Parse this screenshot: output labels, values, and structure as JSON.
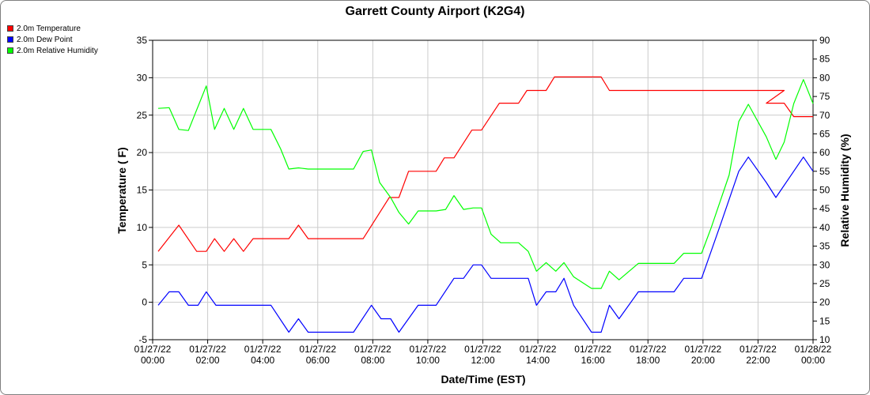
{
  "chart_data": {
    "type": "line",
    "title": "Garrett County Airport (K2G4)",
    "xlabel": "Date/Time (EST)",
    "ylabel": "Temperature ( F)",
    "y2label": "Relative Humidity (%)",
    "ylim": [
      -5,
      35
    ],
    "y2lim": [
      10,
      90
    ],
    "yticks": [
      -5,
      0,
      5,
      10,
      15,
      20,
      25,
      30,
      35
    ],
    "y2ticks": [
      10,
      15,
      20,
      25,
      30,
      35,
      40,
      45,
      50,
      55,
      60,
      65,
      70,
      75,
      80,
      85,
      90
    ],
    "xlim_hours": [
      0,
      24
    ],
    "xticks": [
      {
        "h": 0,
        "date": "01/27/22",
        "time": "00:00"
      },
      {
        "h": 2,
        "date": "01/27/22",
        "time": "02:00"
      },
      {
        "h": 4,
        "date": "01/27/22",
        "time": "04:00"
      },
      {
        "h": 6,
        "date": "01/27/22",
        "time": "06:00"
      },
      {
        "h": 8,
        "date": "01/27/22",
        "time": "08:00"
      },
      {
        "h": 10,
        "date": "01/27/22",
        "time": "10:00"
      },
      {
        "h": 12,
        "date": "01/27/22",
        "time": "12:00"
      },
      {
        "h": 14,
        "date": "01/27/22",
        "time": "14:00"
      },
      {
        "h": 16,
        "date": "01/27/22",
        "time": "16:00"
      },
      {
        "h": 18,
        "date": "01/27/22",
        "time": "18:00"
      },
      {
        "h": 20,
        "date": "01/27/22",
        "time": "20:00"
      },
      {
        "h": 22,
        "date": "01/27/22",
        "time": "22:00"
      },
      {
        "h": 24,
        "date": "01/28/22",
        "time": "00:00"
      }
    ],
    "legend_position": "top-left",
    "grid": true,
    "series": [
      {
        "name": "2.0m Temperature",
        "color": "#ff0000",
        "axis": "left",
        "points": [
          [
            0.2,
            6.8
          ],
          [
            0.95,
            10.3
          ],
          [
            1.6,
            6.8
          ],
          [
            1.95,
            6.8
          ],
          [
            2.25,
            8.5
          ],
          [
            2.6,
            6.8
          ],
          [
            2.95,
            8.5
          ],
          [
            3.3,
            6.8
          ],
          [
            3.65,
            8.5
          ],
          [
            4.95,
            8.5
          ],
          [
            5.3,
            10.3
          ],
          [
            5.65,
            8.5
          ],
          [
            7.65,
            8.5
          ],
          [
            8.6,
            14
          ],
          [
            8.95,
            14
          ],
          [
            9.3,
            17.5
          ],
          [
            10.3,
            17.5
          ],
          [
            10.6,
            19.3
          ],
          [
            10.95,
            19.3
          ],
          [
            11.6,
            23
          ],
          [
            11.95,
            23
          ],
          [
            12.6,
            26.6
          ],
          [
            13.3,
            26.6
          ],
          [
            13.6,
            28.3
          ],
          [
            14.3,
            28.3
          ],
          [
            14.6,
            30.1
          ],
          [
            16.3,
            30.1
          ],
          [
            16.6,
            28.3
          ],
          [
            22.95,
            28.3
          ],
          [
            22.3,
            26.6
          ],
          [
            22.95,
            26.6
          ],
          [
            23.3,
            24.8
          ],
          [
            24,
            24.8
          ]
        ]
      },
      {
        "name": "2.0m Dew Point",
        "color": "#0000ff",
        "axis": "left",
        "points": [
          [
            0.2,
            -0.4
          ],
          [
            0.6,
            1.4
          ],
          [
            0.95,
            1.4
          ],
          [
            1.3,
            -0.4
          ],
          [
            1.65,
            -0.4
          ],
          [
            1.95,
            1.4
          ],
          [
            2.3,
            -0.4
          ],
          [
            4.3,
            -0.4
          ],
          [
            4.95,
            -4
          ],
          [
            5.3,
            -2.2
          ],
          [
            5.65,
            -4
          ],
          [
            7.3,
            -4
          ],
          [
            7.95,
            -0.4
          ],
          [
            8.3,
            -2.2
          ],
          [
            8.65,
            -2.2
          ],
          [
            8.95,
            -4
          ],
          [
            9.65,
            -0.4
          ],
          [
            10.3,
            -0.4
          ],
          [
            10.95,
            3.2
          ],
          [
            11.3,
            3.2
          ],
          [
            11.65,
            5
          ],
          [
            11.95,
            5
          ],
          [
            12.3,
            3.2
          ],
          [
            13.65,
            3.2
          ],
          [
            13.95,
            -0.4
          ],
          [
            14.3,
            1.4
          ],
          [
            14.65,
            1.4
          ],
          [
            14.95,
            3.2
          ],
          [
            15.3,
            -0.4
          ],
          [
            15.95,
            -4
          ],
          [
            16.3,
            -4
          ],
          [
            16.6,
            -0.4
          ],
          [
            16.95,
            -2.2
          ],
          [
            17.65,
            1.4
          ],
          [
            18.95,
            1.4
          ],
          [
            19.3,
            3.2
          ],
          [
            19.95,
            3.2
          ],
          [
            20.65,
            10.5
          ],
          [
            21.3,
            17.5
          ],
          [
            21.65,
            19.4
          ],
          [
            22.3,
            16
          ],
          [
            22.65,
            14
          ],
          [
            23.65,
            19.4
          ],
          [
            24,
            17.5
          ]
        ]
      },
      {
        "name": "2.0m Relative Humidity",
        "color": "#00ff00",
        "axis": "right",
        "points": [
          [
            0.2,
            71.8
          ],
          [
            0.6,
            72
          ],
          [
            0.95,
            66.2
          ],
          [
            1.3,
            65.9
          ],
          [
            1.95,
            77.8
          ],
          [
            2.25,
            66.2
          ],
          [
            2.6,
            71.8
          ],
          [
            2.95,
            66.2
          ],
          [
            3.3,
            71.8
          ],
          [
            3.65,
            66.2
          ],
          [
            4.3,
            66.2
          ],
          [
            4.65,
            61
          ],
          [
            4.95,
            55.6
          ],
          [
            5.3,
            55.9
          ],
          [
            5.65,
            55.6
          ],
          [
            7.3,
            55.6
          ],
          [
            7.65,
            60.3
          ],
          [
            7.95,
            60.7
          ],
          [
            8.25,
            52
          ],
          [
            8.65,
            48
          ],
          [
            8.95,
            44
          ],
          [
            9.3,
            40.9
          ],
          [
            9.65,
            44.4
          ],
          [
            10.3,
            44.4
          ],
          [
            10.65,
            44.8
          ],
          [
            10.95,
            48.5
          ],
          [
            11.3,
            44.8
          ],
          [
            11.65,
            45.2
          ],
          [
            11.95,
            45.2
          ],
          [
            12.3,
            38.2
          ],
          [
            12.65,
            35.9
          ],
          [
            13.3,
            35.9
          ],
          [
            13.65,
            33.6
          ],
          [
            13.95,
            28.3
          ],
          [
            14.3,
            30.6
          ],
          [
            14.65,
            28.3
          ],
          [
            14.95,
            30.6
          ],
          [
            15.3,
            26.8
          ],
          [
            15.95,
            23.7
          ],
          [
            16.3,
            23.7
          ],
          [
            16.6,
            28.3
          ],
          [
            16.95,
            26
          ],
          [
            17.65,
            30.4
          ],
          [
            18.95,
            30.4
          ],
          [
            19.3,
            33.1
          ],
          [
            19.95,
            33.1
          ],
          [
            20.3,
            40
          ],
          [
            20.95,
            54
          ],
          [
            21.3,
            68.3
          ],
          [
            21.65,
            72.9
          ],
          [
            22.3,
            64.2
          ],
          [
            22.65,
            58.2
          ],
          [
            22.95,
            62.8
          ],
          [
            23.3,
            73.1
          ],
          [
            23.65,
            79.5
          ],
          [
            24,
            73.1
          ]
        ]
      }
    ]
  }
}
